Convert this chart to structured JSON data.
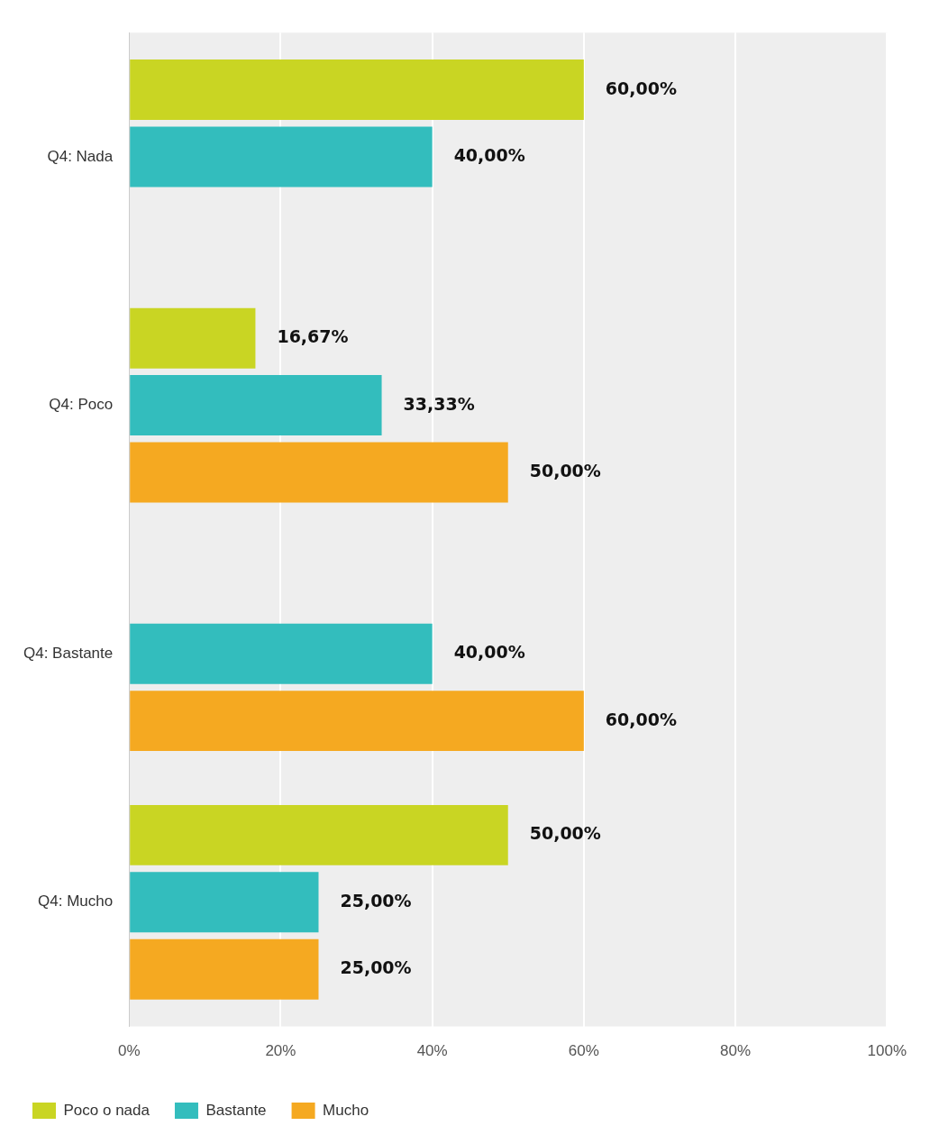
{
  "chart_data": {
    "type": "bar",
    "orientation": "horizontal",
    "categories": [
      "Q4: Nada",
      "Q4: Poco",
      "Q4: Bastante",
      "Q4: Mucho"
    ],
    "series": [
      {
        "name": "Poco o nada",
        "color": "#c9d523",
        "values": [
          60,
          16.67,
          null,
          50
        ],
        "value_labels": [
          "60,00%",
          "16,67%",
          null,
          "50,00%"
        ]
      },
      {
        "name": "Bastante",
        "color": "#33bdbd",
        "values": [
          40,
          33.33,
          40,
          25
        ],
        "value_labels": [
          "40,00%",
          "33,33%",
          "40,00%",
          "25,00%"
        ]
      },
      {
        "name": "Mucho",
        "color": "#f5a921",
        "values": [
          null,
          50,
          60,
          25
        ],
        "value_labels": [
          null,
          "50,00%",
          "60,00%",
          "25,00%"
        ]
      }
    ],
    "xlim": [
      0,
      100
    ],
    "xticks": [
      {
        "value": 0,
        "label": "0%"
      },
      {
        "value": 20,
        "label": "20%"
      },
      {
        "value": 40,
        "label": "40%"
      },
      {
        "value": 60,
        "label": "60%"
      },
      {
        "value": 80,
        "label": "80%"
      },
      {
        "value": 100,
        "label": "100%"
      }
    ],
    "grid": "x",
    "legend": "bottom left"
  }
}
